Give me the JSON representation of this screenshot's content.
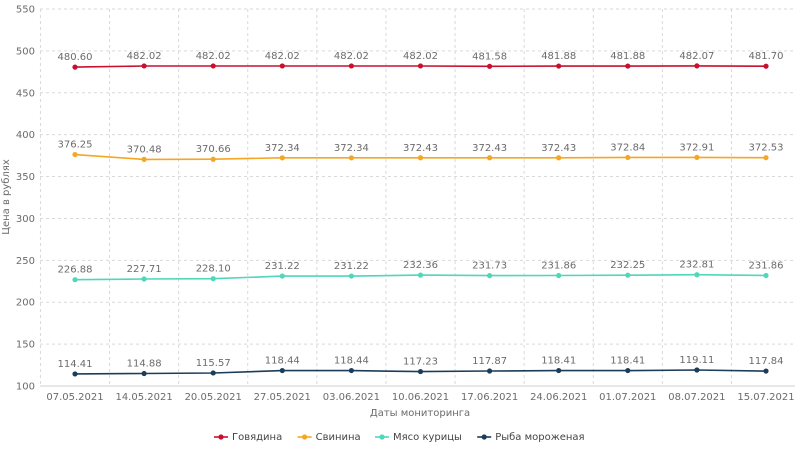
{
  "chart_data": {
    "type": "line",
    "title": "",
    "xlabel": "Даты мониторинга",
    "ylabel": "Цена в рублях",
    "ylim": [
      100,
      550
    ],
    "yticks": [
      100,
      150,
      200,
      250,
      300,
      350,
      400,
      450,
      500,
      550
    ],
    "grid": true,
    "legend_position": "bottom",
    "categories": [
      "07.05.2021",
      "14.05.2021",
      "20.05.2021",
      "27.05.2021",
      "03.06.2021",
      "10.06.2021",
      "17.06.2021",
      "24.06.2021",
      "01.07.2021",
      "08.07.2021",
      "15.07.2021"
    ],
    "series": [
      {
        "name": "Говядина",
        "color": "#c8102e",
        "values": [
          480.6,
          482.02,
          482.02,
          482.02,
          482.02,
          482.02,
          481.58,
          481.88,
          481.88,
          482.07,
          481.7
        ]
      },
      {
        "name": "Свинина",
        "color": "#f5a623",
        "values": [
          376.25,
          370.48,
          370.66,
          372.34,
          372.34,
          372.43,
          372.43,
          372.43,
          372.84,
          372.91,
          372.53
        ]
      },
      {
        "name": "Мясо курицы",
        "color": "#4fd6bb",
        "values": [
          226.88,
          227.71,
          228.1,
          231.22,
          231.22,
          232.36,
          231.73,
          231.86,
          232.25,
          232.81,
          231.86
        ]
      },
      {
        "name": "Рыба мороженая",
        "color": "#1c3d5a",
        "values": [
          114.41,
          114.88,
          115.57,
          118.44,
          118.44,
          117.23,
          117.87,
          118.41,
          118.41,
          119.11,
          117.84
        ]
      }
    ]
  }
}
